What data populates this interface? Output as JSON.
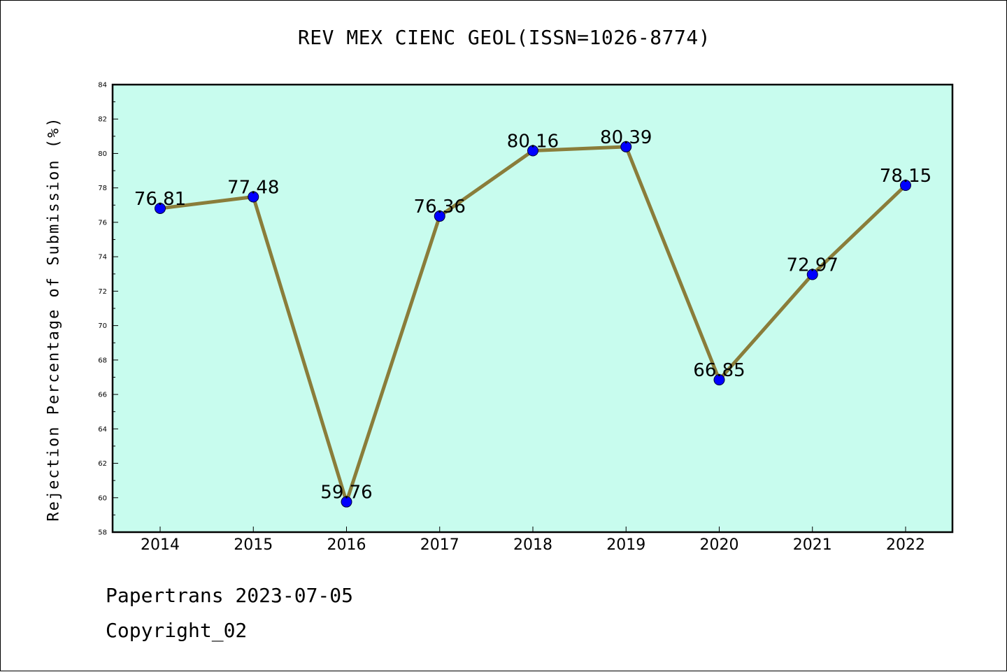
{
  "chart_data": {
    "type": "line",
    "title": "REV MEX CIENC GEOL(ISSN=1026-8774)",
    "xlabel": "",
    "ylabel": "Rejection Percentage of Submission (%)",
    "categories": [
      "2014",
      "2015",
      "2016",
      "2017",
      "2018",
      "2019",
      "2020",
      "2021",
      "2022"
    ],
    "series": [
      {
        "values": [
          76.81,
          77.48,
          59.76,
          76.36,
          80.16,
          80.39,
          66.85,
          72.97,
          78.15
        ],
        "data_labels": [
          "76.81",
          "77.48",
          "59.76",
          "76.36",
          "80.16",
          "80.39",
          "66.85",
          "72.97",
          "78.15"
        ]
      }
    ],
    "ylim": [
      58,
      84
    ],
    "yticks": [
      58,
      60,
      62,
      64,
      66,
      68,
      70,
      72,
      74,
      76,
      78,
      80,
      82,
      84
    ],
    "ytick_labels": [
      "58",
      "60",
      "62",
      "64",
      "66",
      "68",
      "70",
      "72",
      "74",
      "76",
      "78",
      "80",
      "82",
      "84"
    ],
    "grid": false,
    "colors": {
      "plot_background": "#c8fcee",
      "line": "#8a7d3a",
      "marker": "#0000ff"
    }
  },
  "footer": {
    "date_line": "Papertrans 2023-07-05",
    "copyright_line": "Copyright_02"
  }
}
